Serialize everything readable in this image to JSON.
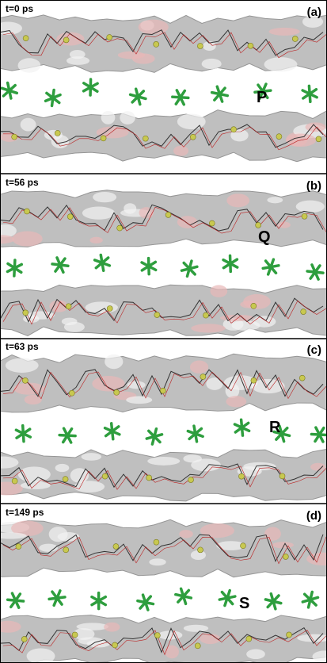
{
  "panels": [
    {
      "time": "t=0 ps",
      "label": "(a)",
      "marker": "P"
    },
    {
      "time": "t=56 ps",
      "label": "(b)",
      "marker": "Q"
    },
    {
      "time": "t=63 ps",
      "label": "(c)",
      "marker": "R"
    },
    {
      "time": "t=149 ps",
      "label": "(d)",
      "marker": "S"
    }
  ]
}
